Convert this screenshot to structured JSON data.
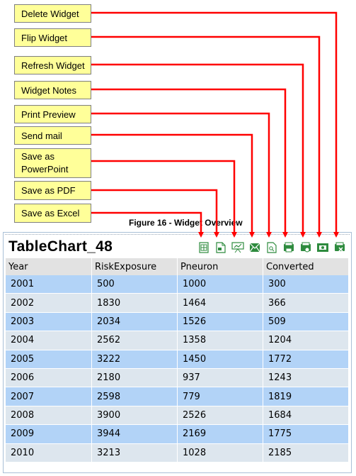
{
  "callouts": {
    "delete_widget": "Delete Widget",
    "flip_widget": "Flip Widget",
    "refresh_widget": "Refresh Widget",
    "widget_notes": "Widget Notes",
    "print_preview": "Print Preview",
    "send_mail": "Send mail",
    "save_as_powerpoint": "Save as PowerPoint",
    "save_as_pdf": "Save as PDF",
    "save_as_excel": "Save as Excel"
  },
  "caption": "Figure 16 - Widget Overview",
  "widget": {
    "title": "TableChart_48",
    "toolbar_icons": [
      "excel-icon",
      "pdf-icon",
      "powerpoint-icon",
      "mail-icon",
      "print-preview-icon",
      "notes-icon",
      "refresh-icon",
      "flip-icon",
      "delete-icon"
    ],
    "columns": [
      "Year",
      "RiskExposure",
      "Pneuron",
      "Converted"
    ],
    "rows": [
      [
        "2001",
        "500",
        "1000",
        "300"
      ],
      [
        "2002",
        "1830",
        "1464",
        "366"
      ],
      [
        "2003",
        "2034",
        "1526",
        "509"
      ],
      [
        "2004",
        "2562",
        "1358",
        "1204"
      ],
      [
        "2005",
        "3222",
        "1450",
        "1772"
      ],
      [
        "2006",
        "2180",
        "937",
        "1243"
      ],
      [
        "2007",
        "2598",
        "779",
        "1819"
      ],
      [
        "2008",
        "3900",
        "2526",
        "1684"
      ],
      [
        "2009",
        "3944",
        "2169",
        "1775"
      ],
      [
        "2010",
        "3213",
        "1028",
        "2185"
      ]
    ]
  },
  "colors": {
    "callout_fill": "#ffff99",
    "arrow": "#ff0000",
    "row_odd": "#b2d3f7",
    "row_even": "#dde6ee",
    "header": "#e2e2e2",
    "icon_green": "#2e8b3e"
  }
}
